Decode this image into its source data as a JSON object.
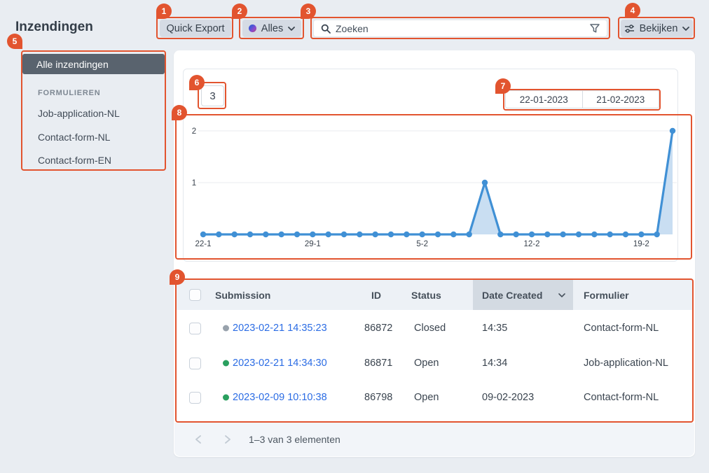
{
  "app": {
    "title": "Inzendingen"
  },
  "toolbar": {
    "quick_export": "Quick Export",
    "scope": {
      "label": "Alles",
      "dot_colors": [
        "#4558d4",
        "#9b44b8"
      ]
    },
    "search": {
      "placeholder": "Zoeken"
    },
    "view": {
      "label": "Bekijken"
    }
  },
  "sidebar": {
    "selected": "Alle inzendingen",
    "section": "FORMULIEREN",
    "items": [
      "Job-application-NL",
      "Contact-form-NL",
      "Contact-form-EN"
    ]
  },
  "panel": {
    "count": "3",
    "date_from": "22-01-2023",
    "date_to": "21-02-2023"
  },
  "chart_data": {
    "type": "line",
    "x_start": "22-1",
    "x_end": "21-2",
    "values": [
      0,
      0,
      0,
      0,
      0,
      0,
      0,
      0,
      0,
      0,
      0,
      0,
      0,
      0,
      0,
      0,
      0,
      0,
      1,
      0,
      0,
      0,
      0,
      0,
      0,
      0,
      0,
      0,
      0,
      0,
      2
    ],
    "x_ticks": [
      "22-1",
      "29-1",
      "5-2",
      "12-2",
      "19-2"
    ],
    "tick_indices": [
      0,
      7,
      14,
      21,
      28
    ],
    "yticks": [
      1,
      2
    ],
    "ylim": [
      0,
      2
    ],
    "line_color": "#4090d5",
    "fill_color": "#c9def2",
    "grid": true,
    "legend": false
  },
  "table": {
    "columns": [
      "Submission",
      "ID",
      "Status",
      "Date Created",
      "Formulier"
    ],
    "sort_column": "Date Created",
    "rows": [
      {
        "status_dot": "#98a2ac",
        "submission": "2023-02-21 14:35:23",
        "id": "86872",
        "status": "Closed",
        "date_created": "14:35",
        "form": "Contact-form-NL"
      },
      {
        "status_dot": "#2aa05f",
        "submission": "2023-02-21 14:34:30",
        "id": "86871",
        "status": "Open",
        "date_created": "14:34",
        "form": "Job-application-NL"
      },
      {
        "status_dot": "#2aa05f",
        "submission": "2023-02-09 10:10:38",
        "id": "86798",
        "status": "Open",
        "date_created": "09-02-2023",
        "form": "Contact-form-NL"
      }
    ]
  },
  "pagination": {
    "label": "1–3 van 3 elementen"
  },
  "annotations": {
    "numbers": [
      "1",
      "2",
      "3",
      "4",
      "5",
      "6",
      "7",
      "8",
      "9"
    ],
    "color": "#e2542f"
  }
}
